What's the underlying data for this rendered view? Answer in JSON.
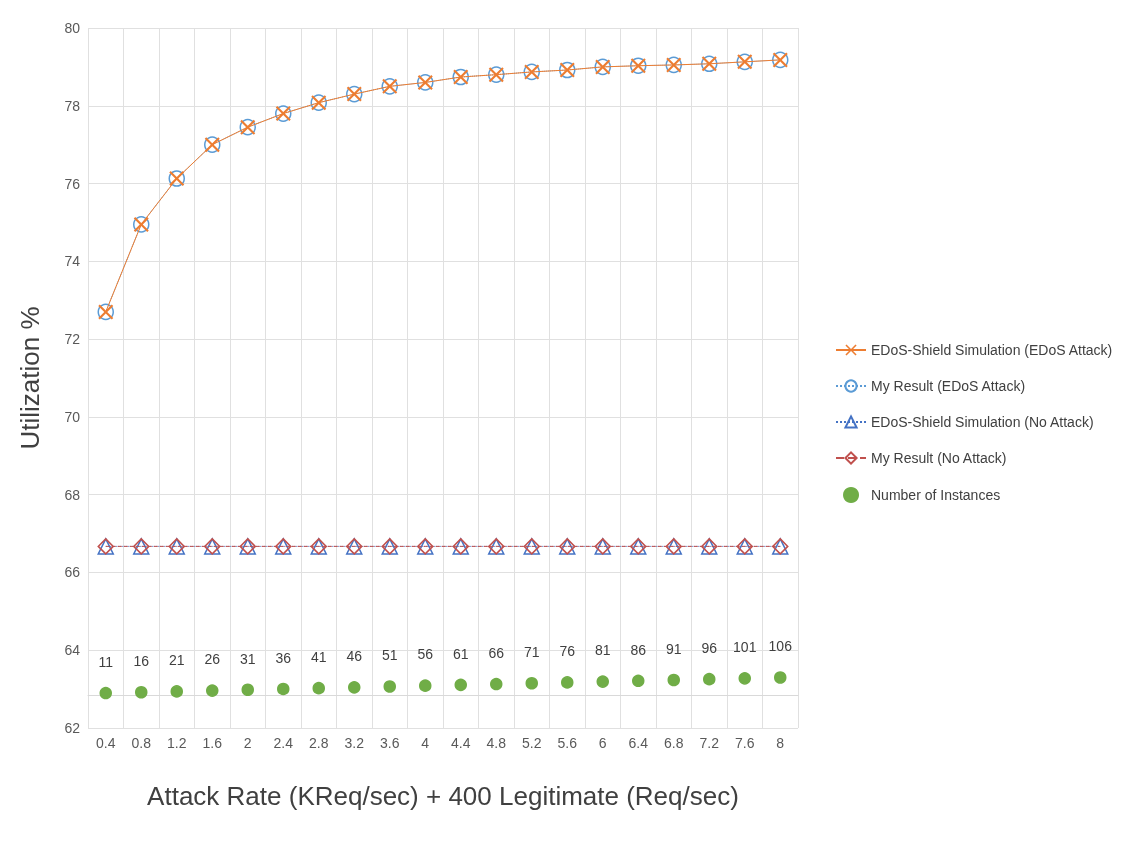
{
  "chart_data": {
    "type": "line",
    "xlabel": "Attack Rate (KReq/sec) + 400 Legitimate (Req/sec)",
    "ylabel": "Utilization %",
    "categories": [
      "0.4",
      "0.8",
      "1.2",
      "1.6",
      "2",
      "2.4",
      "2.8",
      "3.2",
      "3.6",
      "4",
      "4.4",
      "4.8",
      "5.2",
      "5.6",
      "6",
      "6.4",
      "6.8",
      "7.2",
      "7.6",
      "8"
    ],
    "ylim": [
      62,
      80
    ],
    "y2lim": [
      -203,
      4082
    ],
    "tick_labels": "xy",
    "yticks": [
      62,
      64,
      66,
      68,
      70,
      72,
      74,
      76,
      78,
      80
    ],
    "grid": true,
    "legend": "right",
    "series": [
      {
        "name": "EDoS-Shield Simulation (EDoS Attack)",
        "color": "#ed7d31",
        "marker": "cross",
        "line_style": "solid",
        "values": [
          72.7,
          74.95,
          76.13,
          77.0,
          77.45,
          77.8,
          78.08,
          78.3,
          78.5,
          78.6,
          78.74,
          78.8,
          78.87,
          78.92,
          79.0,
          79.03,
          79.05,
          79.08,
          79.13,
          79.18
        ]
      },
      {
        "name": "My Result (EDoS Attack)",
        "color": "#5b9bd5",
        "marker": "circle",
        "line_style": "dotted",
        "values": [
          72.7,
          74.95,
          76.13,
          77.0,
          77.45,
          77.8,
          78.08,
          78.3,
          78.5,
          78.6,
          78.74,
          78.8,
          78.87,
          78.92,
          79.0,
          79.03,
          79.05,
          79.08,
          79.13,
          79.18
        ]
      },
      {
        "name": "EDoS-Shield Simulation (No Attack)",
        "color": "#4472c4",
        "marker": "triangle",
        "line_style": "dotted",
        "values": [
          66.67,
          66.67,
          66.67,
          66.67,
          66.67,
          66.67,
          66.67,
          66.67,
          66.67,
          66.67,
          66.67,
          66.67,
          66.67,
          66.67,
          66.67,
          66.67,
          66.67,
          66.67,
          66.67,
          66.67
        ]
      },
      {
        "name": "My Result (No Attack)",
        "color": "#c0504d",
        "marker": "diamond",
        "line_style": "dashed",
        "values": [
          66.67,
          66.67,
          66.67,
          66.67,
          66.67,
          66.67,
          66.67,
          66.67,
          66.67,
          66.67,
          66.67,
          66.67,
          66.67,
          66.67,
          66.67,
          66.67,
          66.67,
          66.67,
          66.67,
          66.67
        ]
      },
      {
        "name": "Number of Instances",
        "type": "scatter",
        "axis": "y2",
        "data_labels": true,
        "color": "#70ad47",
        "marker": "circle",
        "values": [
          11,
          16,
          21,
          26,
          31,
          36,
          41,
          46,
          51,
          56,
          61,
          66,
          71,
          76,
          81,
          86,
          91,
          96,
          101,
          106
        ]
      }
    ]
  }
}
